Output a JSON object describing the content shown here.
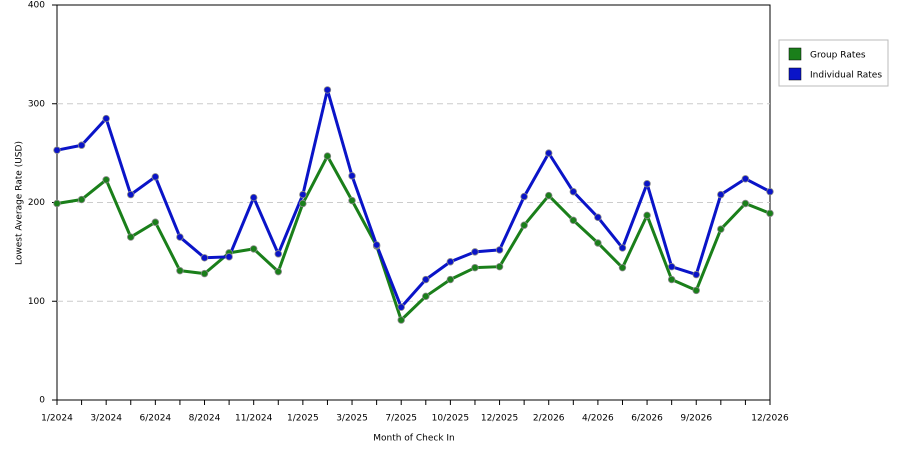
{
  "chart_data": {
    "type": "line",
    "y_label": "Lowest Average Rate (USD)",
    "x_label": "Month of Check In",
    "categories": [
      "1/2024",
      null,
      "3/2024",
      null,
      "6/2024",
      null,
      "8/2024",
      null,
      "11/2024",
      null,
      "1/2025",
      null,
      "3/2025",
      null,
      "7/2025",
      null,
      "10/2025",
      null,
      "12/2025",
      null,
      "2/2026",
      null,
      "4/2026",
      null,
      "6/2026",
      null,
      "9/2026",
      null,
      null,
      "12/2026"
    ],
    "series": [
      {
        "name": "Group Rates",
        "color": "#1a7f1a",
        "values": [
          199,
          203,
          223,
          165,
          180,
          131,
          128,
          149,
          153,
          130,
          199,
          247,
          202,
          156,
          81,
          105,
          122,
          134,
          135,
          177,
          207,
          182,
          159,
          134,
          187,
          122,
          111,
          173,
          199,
          189
        ]
      },
      {
        "name": "Individual Rates",
        "color": "#0a14c8",
        "values": [
          253,
          258,
          285,
          208,
          226,
          165,
          144,
          145,
          205,
          148,
          208,
          314,
          227,
          157,
          94,
          122,
          140,
          150,
          152,
          206,
          250,
          211,
          185,
          154,
          219,
          135,
          127,
          208,
          224,
          211
        ]
      }
    ],
    "ylim": [
      0,
      400
    ],
    "yticks": [
      0,
      100,
      200,
      300,
      400
    ],
    "grid": true,
    "legend": "right"
  }
}
